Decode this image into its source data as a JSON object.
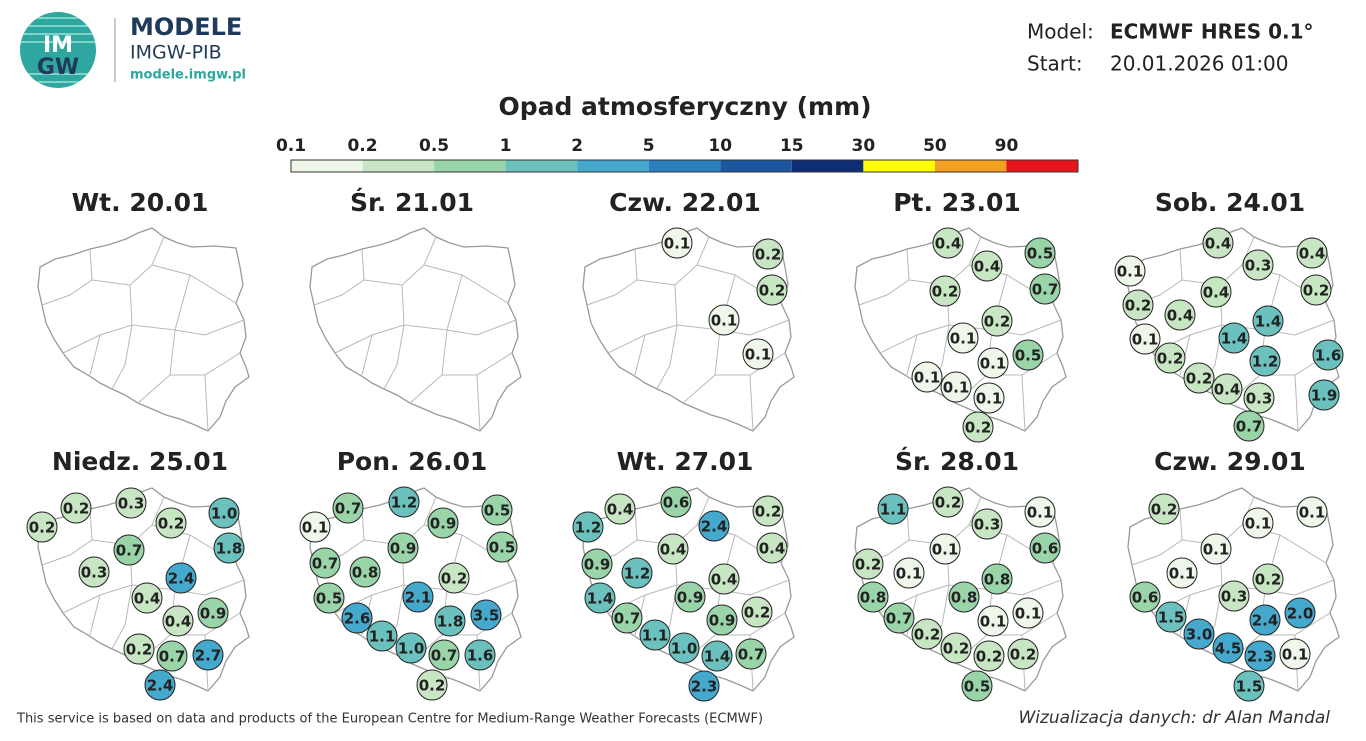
{
  "header": {
    "logo_top": "IM",
    "logo_bottom": "GW",
    "brand": "MODELE",
    "org": "IMGW-PIB",
    "url": "modele.imgw.pl",
    "model_label": "Model:",
    "model": "ECMWF HRES 0.1°",
    "start_label": "Start:",
    "start": "20.01.2026 01:00",
    "title": "Opad atmosferyczny (mm)"
  },
  "legend": {
    "ticks": [
      "0.1",
      "0.2",
      "0.5",
      "1",
      "2",
      "5",
      "10",
      "15",
      "30",
      "50",
      "90"
    ],
    "colors": [
      "#eef7ea",
      "#c8e6c3",
      "#9ad5aa",
      "#6bc1bd",
      "#45a8cd",
      "#2c7fbf",
      "#1d56a0",
      "#0e2d74",
      "#ffff00",
      "#f5a020",
      "#e8141c"
    ]
  },
  "panels": [
    {
      "title": "Wt. 20.01",
      "values": []
    },
    {
      "title": "Śr. 21.01",
      "values": []
    },
    {
      "title": "Czw. 22.01",
      "values": [
        "0.1",
        "0.2",
        "0.2",
        "0.1",
        "0.1"
      ]
    },
    {
      "title": "Pt. 23.01",
      "values": [
        "0.4",
        "0.4",
        "0.5",
        "0.2",
        "0.7",
        "0.2",
        "0.1",
        "0.1",
        "0.5",
        "0.1",
        "0.1",
        "0.1",
        "0.2"
      ]
    },
    {
      "title": "Sob. 24.01",
      "values": [
        "0.4",
        "0.1",
        "0.3",
        "0.4",
        "0.4",
        "0.2",
        "0.2",
        "0.4",
        "1.4",
        "0.1",
        "1.4",
        "0.2",
        "1.2",
        "1.6",
        "0.2",
        "0.4",
        "0.3",
        "1.9",
        "0.7"
      ]
    },
    {
      "title": "Niedz. 25.01",
      "values": [
        "0.2",
        "0.2",
        "0.3",
        "0.2",
        "1.0",
        "0.7",
        "1.8",
        "0.3",
        "2.4",
        "0.4",
        "0.4",
        "0.9",
        "0.2",
        "0.7",
        "2.7",
        "2.4"
      ]
    },
    {
      "title": "Pon. 26.01",
      "values": [
        "0.7",
        "1.2",
        "0.1",
        "0.9",
        "0.5",
        "0.9",
        "0.5",
        "0.7",
        "0.8",
        "0.2",
        "0.5",
        "2.1",
        "2.6",
        "1.8",
        "3.5",
        "1.1",
        "1.0",
        "0.7",
        "1.6",
        "0.2"
      ]
    },
    {
      "title": "Wt. 27.01",
      "values": [
        "0.4",
        "0.6",
        "2.4",
        "0.2",
        "1.2",
        "0.4",
        "0.4",
        "0.9",
        "1.2",
        "0.4",
        "1.4",
        "0.9",
        "0.7",
        "0.9",
        "0.2",
        "1.1",
        "1.0",
        "1.4",
        "0.7",
        "2.3"
      ]
    },
    {
      "title": "Śr. 28.01",
      "values": [
        "1.1",
        "0.2",
        "0.3",
        "0.1",
        "0.1",
        "0.6",
        "0.2",
        "0.1",
        "0.8",
        "0.8",
        "0.8",
        "0.7",
        "0.1",
        "0.1",
        "0.2",
        "0.2",
        "0.2",
        "0.2",
        "0.5"
      ]
    },
    {
      "title": "Czw. 29.01",
      "values": [
        "0.2",
        "0.1",
        "0.1",
        "0.1",
        "0.1",
        "0.2",
        "0.6",
        "0.3",
        "1.5",
        "2.4",
        "2.0",
        "3.0",
        "4.5",
        "2.3",
        "0.1",
        "1.5"
      ]
    }
  ],
  "footer": {
    "note": "This service is based on data and products of the European Centre for Medium-Range Weather Forecasts (ECMWF)",
    "credit": "Wizualizacja danych: dr Alan Mandal"
  }
}
